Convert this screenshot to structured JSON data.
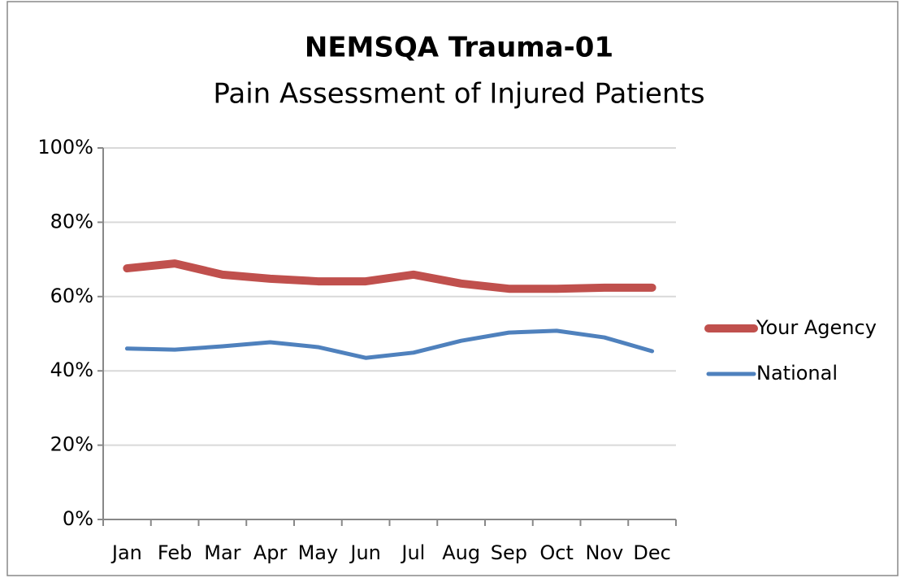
{
  "chart_data": {
    "type": "line",
    "title": "NEMSQA Trauma-01",
    "subtitle": "Pain Assessment of Injured Patients",
    "categories": [
      "Jan",
      "Feb",
      "Mar",
      "Apr",
      "May",
      "Jun",
      "Jul",
      "Aug",
      "Sep",
      "Oct",
      "Nov",
      "Dec"
    ],
    "series": [
      {
        "name": "Your Agency",
        "color": "#c0504d",
        "values": [
          67.6,
          68.9,
          65.9,
          64.8,
          64.1,
          64.1,
          65.9,
          63.5,
          62.1,
          62.1,
          62.4,
          62.4
        ]
      },
      {
        "name": "National",
        "color": "#4f81bd",
        "values": [
          46.0,
          45.7,
          46.6,
          47.7,
          46.4,
          43.5,
          44.9,
          48.1,
          50.3,
          50.8,
          49.0,
          45.3
        ]
      }
    ],
    "ylim": [
      0,
      100
    ],
    "yticks": [
      {
        "value": 0,
        "label": "0%"
      },
      {
        "value": 20,
        "label": "20%"
      },
      {
        "value": 40,
        "label": "40%"
      },
      {
        "value": 60,
        "label": "60%"
      },
      {
        "value": 80,
        "label": "80%"
      },
      {
        "value": 100,
        "label": "100%"
      }
    ],
    "grid": true,
    "legend": "right"
  }
}
